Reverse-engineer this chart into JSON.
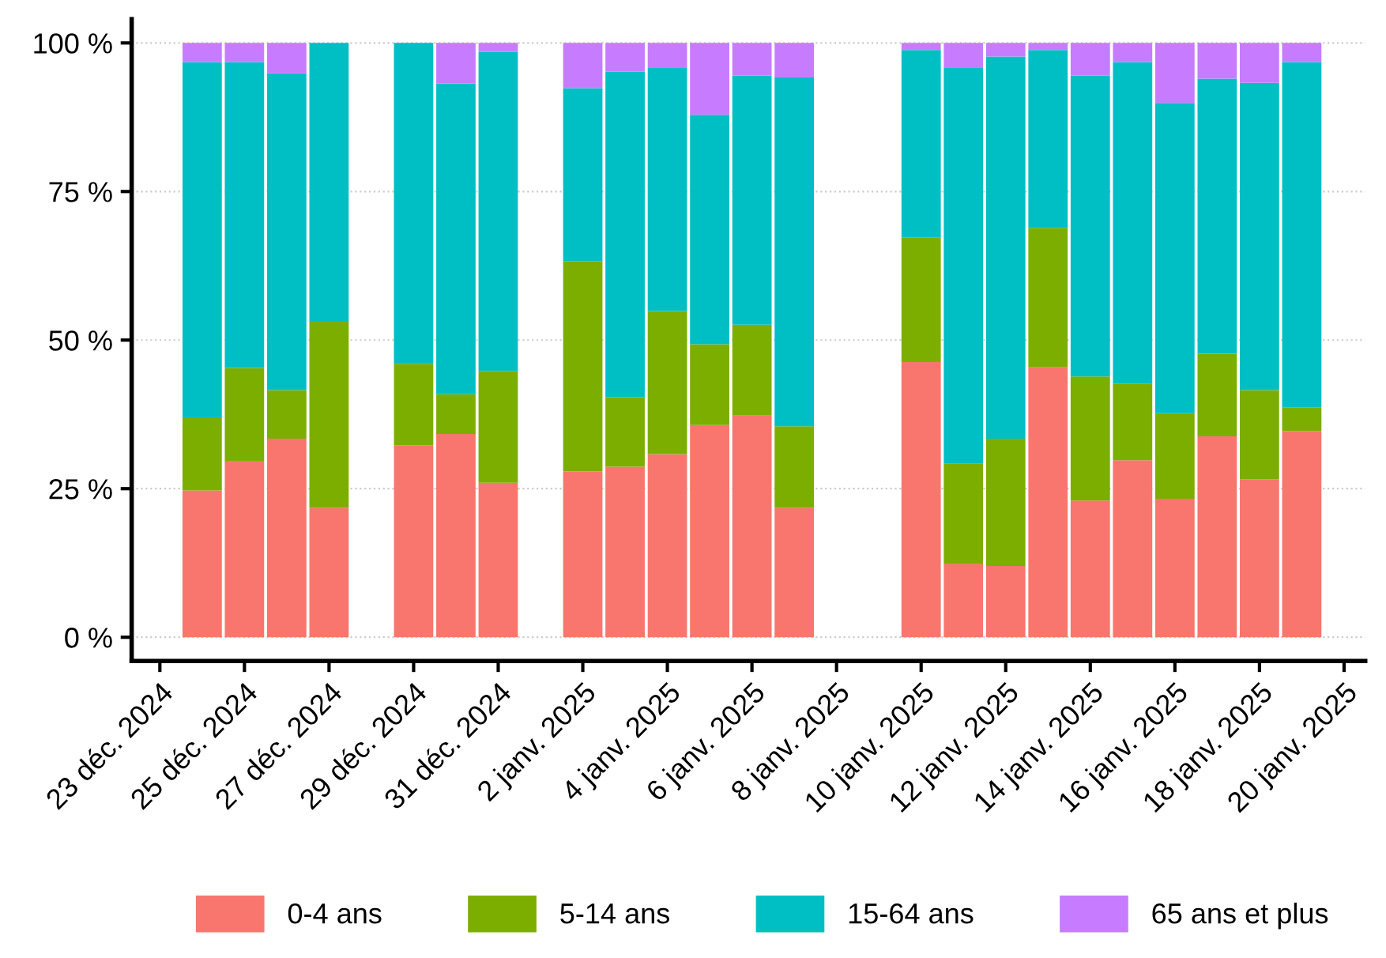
{
  "chart_data": {
    "type": "bar",
    "stacked": true,
    "x": [
      "2024-12-24",
      "2024-12-25",
      "2024-12-26",
      "2024-12-27",
      "2024-12-29",
      "2024-12-30",
      "2024-12-31",
      "2025-01-02",
      "2025-01-03",
      "2025-01-04",
      "2025-01-05",
      "2025-01-06",
      "2025-01-07",
      "2025-01-10",
      "2025-01-11",
      "2025-01-12",
      "2025-01-13",
      "2025-01-14",
      "2025-01-15",
      "2025-01-16",
      "2025-01-17",
      "2025-01-18",
      "2025-01-19"
    ],
    "series": [
      {
        "name": "0-4 ans",
        "color": "#f8766d",
        "values": [
          24.7,
          29.7,
          33.4,
          21.8,
          32.3,
          34.2,
          26.0,
          27.9,
          28.7,
          30.8,
          35.7,
          37.3,
          21.8,
          46.3,
          12.4,
          12.0,
          45.4,
          23.0,
          29.8,
          23.3,
          33.8,
          26.6,
          34.7
        ]
      },
      {
        "name": "5-14 ans",
        "color": "#7cae00",
        "values": [
          12.3,
          15.6,
          8.2,
          31.3,
          13.7,
          6.7,
          18.8,
          35.4,
          11.7,
          24.1,
          13.6,
          15.3,
          13.7,
          21.0,
          16.8,
          21.4,
          23.5,
          20.9,
          12.9,
          14.4,
          13.9,
          15.0,
          4.0
        ]
      },
      {
        "name": "15-64 ans",
        "color": "#00bfc4",
        "values": [
          59.8,
          51.5,
          53.3,
          46.9,
          54.0,
          52.3,
          53.7,
          29.1,
          54.8,
          40.9,
          38.6,
          41.9,
          58.7,
          31.5,
          66.6,
          64.3,
          29.9,
          50.6,
          54.1,
          52.2,
          46.3,
          51.7,
          58.1
        ]
      },
      {
        "name": "65 ans et plus",
        "color": "#c77cff",
        "values": [
          3.2,
          3.2,
          5.1,
          null,
          null,
          6.8,
          1.5,
          7.6,
          4.8,
          4.2,
          12.1,
          5.5,
          5.8,
          1.2,
          4.2,
          2.3,
          1.2,
          5.5,
          3.2,
          10.1,
          6.0,
          6.7,
          3.2
        ]
      }
    ],
    "xlim": [
      "2024-12-22T08:00",
      "2025-01-20T12:00"
    ],
    "xticks": [
      {
        "value": "2024-12-23",
        "label": "23 déc. 2024"
      },
      {
        "value": "2024-12-25",
        "label": "25 déc. 2024"
      },
      {
        "value": "2024-12-27",
        "label": "27 déc. 2024"
      },
      {
        "value": "2024-12-29",
        "label": "29 déc. 2024"
      },
      {
        "value": "2024-12-31",
        "label": "31 déc. 2024"
      },
      {
        "value": "2025-01-02",
        "label": "2 janv. 2025"
      },
      {
        "value": "2025-01-04",
        "label": "4 janv. 2025"
      },
      {
        "value": "2025-01-06",
        "label": "6 janv. 2025"
      },
      {
        "value": "2025-01-08",
        "label": "8 janv. 2025"
      },
      {
        "value": "2025-01-10",
        "label": "10 janv. 2025"
      },
      {
        "value": "2025-01-12",
        "label": "12 janv. 2025"
      },
      {
        "value": "2025-01-14",
        "label": "14 janv. 2025"
      },
      {
        "value": "2025-01-16",
        "label": "16 janv. 2025"
      },
      {
        "value": "2025-01-18",
        "label": "18 janv. 2025"
      },
      {
        "value": "2025-01-20",
        "label": "20 janv. 2025"
      }
    ],
    "ylim": [
      -4,
      104
    ],
    "yticks": [
      {
        "value": 0,
        "label": "0 %"
      },
      {
        "value": 25,
        "label": "25 %"
      },
      {
        "value": 50,
        "label": "50 %"
      },
      {
        "value": 75,
        "label": "75 %"
      },
      {
        "value": 100,
        "label": "100 %"
      }
    ],
    "grid": "y",
    "legend": "bottom"
  }
}
